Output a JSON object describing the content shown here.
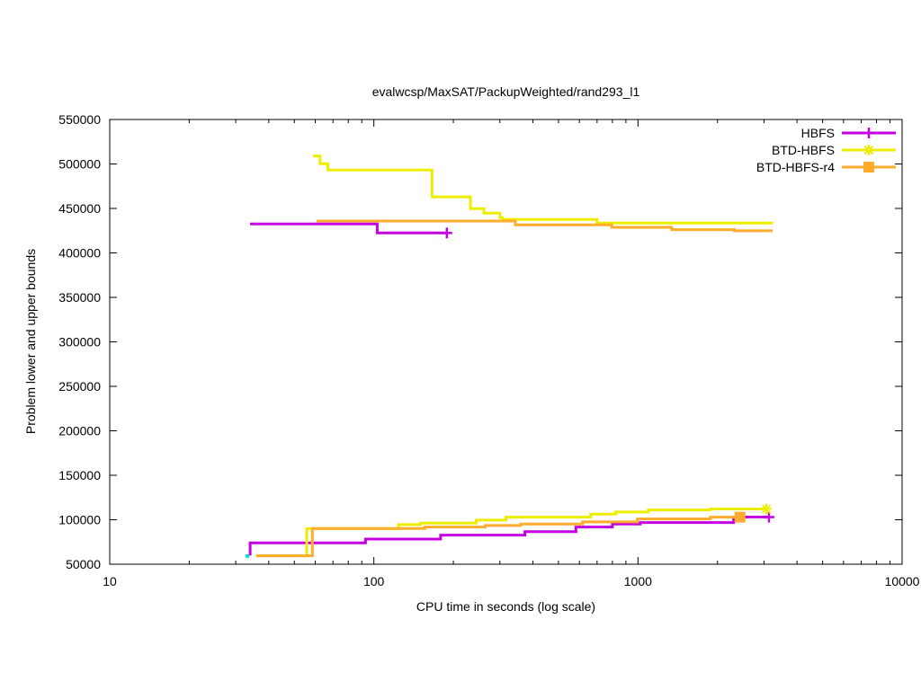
{
  "chart_data": {
    "type": "line",
    "title": "evalwcsp/MaxSAT/PackupWeighted/rand293_l1",
    "xlabel": "CPU time in seconds (log scale)",
    "ylabel": "Problem lower and upper bounds",
    "xscale": "log",
    "xlim": [
      10,
      10000
    ],
    "ylim": [
      50000,
      550000
    ],
    "xticks": [
      10,
      100,
      1000,
      10000
    ],
    "xtick_labels": [
      "10",
      "100",
      "1000",
      "10000"
    ],
    "ytick_step": 50000,
    "grid": false,
    "legend_position": "top-right-inside",
    "frame_color": "#000000",
    "series": [
      {
        "name": "HBFS",
        "color": "#c400e0",
        "marker": "plus",
        "upper_bound": [
          [
            34,
            432500
          ],
          [
            103,
            432500
          ],
          [
            103,
            422400
          ],
          [
            189,
            422400
          ]
        ],
        "lower_bound": [
          [
            34,
            59700
          ],
          [
            34,
            74000
          ],
          [
            93,
            74000
          ],
          [
            93,
            78300
          ],
          [
            179,
            78300
          ],
          [
            179,
            82700
          ],
          [
            373,
            82700
          ],
          [
            373,
            86700
          ],
          [
            582,
            86700
          ],
          [
            582,
            91800
          ],
          [
            800,
            91800
          ],
          [
            800,
            95200
          ],
          [
            1019,
            95200
          ],
          [
            1019,
            96900
          ],
          [
            2302,
            96900
          ],
          [
            2302,
            103000
          ],
          [
            3133,
            103000
          ]
        ],
        "markers": [
          {
            "t": 189,
            "v": 422400
          },
          {
            "t": 3133,
            "v": 103000
          }
        ]
      },
      {
        "name": "BTD-HBFS",
        "color": "#eded00",
        "marker": "asterisk",
        "upper_bound": [
          [
            58.8,
            509000
          ],
          [
            62.6,
            509000
          ],
          [
            62.6,
            500300
          ],
          [
            67,
            500300
          ],
          [
            67,
            493200
          ],
          [
            166,
            493200
          ],
          [
            166,
            463000
          ],
          [
            232,
            463000
          ],
          [
            232,
            449800
          ],
          [
            261,
            449800
          ],
          [
            261,
            444700
          ],
          [
            300,
            444700
          ],
          [
            300,
            439700
          ],
          [
            307,
            439700
          ],
          [
            307,
            437600
          ],
          [
            700,
            437600
          ],
          [
            700,
            433500
          ],
          [
            3247,
            433500
          ]
        ],
        "lower_bound": [
          [
            35.8,
            59500
          ],
          [
            55.7,
            59500
          ],
          [
            55.7,
            90000
          ],
          [
            124,
            90000
          ],
          [
            124,
            94500
          ],
          [
            150,
            94500
          ],
          [
            150,
            96300
          ],
          [
            244,
            96300
          ],
          [
            244,
            99600
          ],
          [
            316,
            99600
          ],
          [
            316,
            102900
          ],
          [
            662,
            102900
          ],
          [
            662,
            106400
          ],
          [
            823,
            106400
          ],
          [
            823,
            108700
          ],
          [
            1093,
            108700
          ],
          [
            1093,
            111000
          ],
          [
            1881,
            111000
          ],
          [
            1881,
            112100
          ],
          [
            3060,
            112100
          ]
        ],
        "markers": [
          {
            "t": 3060,
            "v": 112100
          }
        ]
      },
      {
        "name": "BTD-HBFS-r4",
        "color": "#ffab2e",
        "marker": "square",
        "upper_bound": [
          [
            60.6,
            435900
          ],
          [
            343,
            435900
          ],
          [
            343,
            431500
          ],
          [
            795,
            431500
          ],
          [
            795,
            428800
          ],
          [
            1342,
            428800
          ],
          [
            1342,
            426200
          ],
          [
            2316,
            426200
          ],
          [
            2316,
            424800
          ],
          [
            3237,
            424800
          ]
        ],
        "lower_bound": [
          [
            35.8,
            59500
          ],
          [
            58.5,
            59500
          ],
          [
            58.5,
            90200
          ],
          [
            156,
            90200
          ],
          [
            156,
            91800
          ],
          [
            264,
            91800
          ],
          [
            264,
            93500
          ],
          [
            360,
            93500
          ],
          [
            360,
            95200
          ],
          [
            617,
            95200
          ],
          [
            617,
            97600
          ],
          [
            995,
            97600
          ],
          [
            995,
            100900
          ],
          [
            1881,
            100900
          ],
          [
            1881,
            102900
          ],
          [
            2433,
            102900
          ]
        ],
        "markers": [
          {
            "t": 2433,
            "v": 102900
          }
        ]
      }
    ],
    "extra_points": [
      {
        "t": 33.2,
        "v": 59200,
        "color": "#00e0e0",
        "note": "start dot"
      }
    ]
  }
}
